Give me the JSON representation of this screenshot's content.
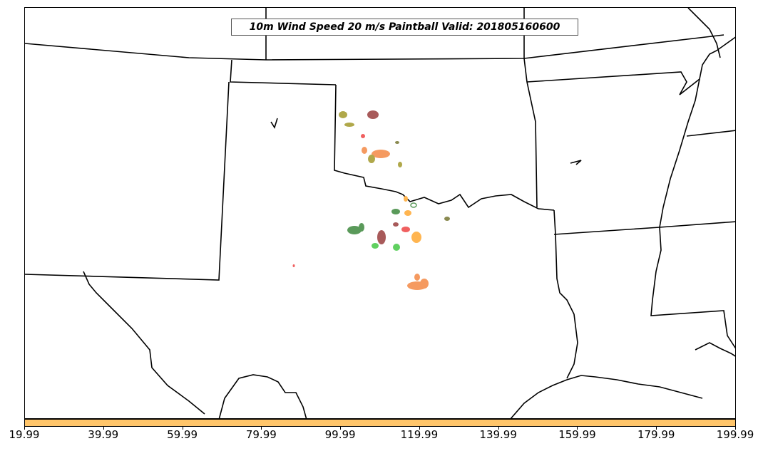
{
  "title": "10m Wind Speed 20 m/s Paintball Valid: 201805160600",
  "colorbar": {
    "color": "#ffc56a",
    "ticks": [
      "19.99",
      "39.99",
      "59.99",
      "79.99",
      "99.99",
      "119.99",
      "139.99",
      "159.99",
      "179.99",
      "199.99"
    ]
  },
  "colors": {
    "land_outline": "#000000",
    "members": [
      "#b0a84a",
      "#a85a5a",
      "#f06060",
      "#f59a60",
      "#5a9a5a",
      "#60d060",
      "#ffb550",
      "#8a8a50"
    ]
  }
}
